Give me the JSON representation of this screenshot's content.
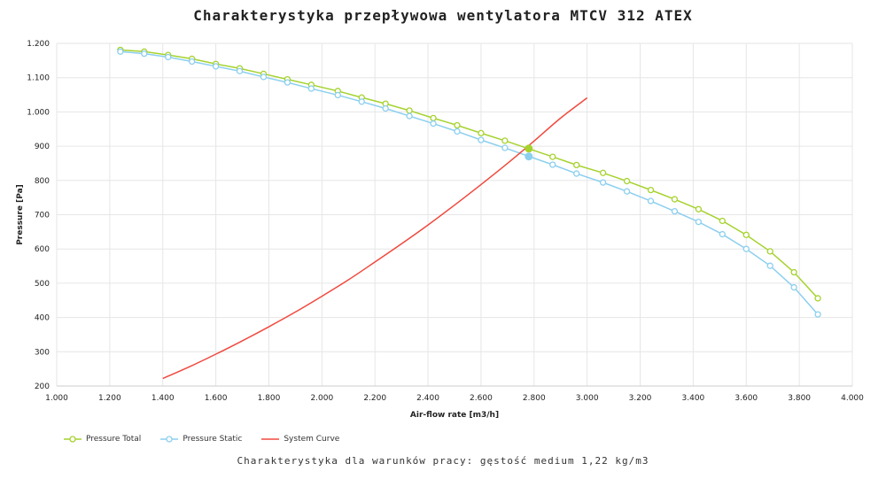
{
  "chart_data": {
    "type": "line",
    "title": "Charakterystyka przepływowa wentylatora MTCV 312 ATEX",
    "subtitle": "Charakterystyka dla warunków pracy: gęstość medium 1,22 kg/m3",
    "xlabel": "Air-flow rate [m3/h]",
    "ylabel": "Pressure [Pa]",
    "xlim": [
      1000,
      4000
    ],
    "ylim": [
      200,
      1200
    ],
    "x_ticks": [
      "1.000",
      "1.200",
      "1.400",
      "1.600",
      "1.800",
      "2.000",
      "2.200",
      "2.400",
      "2.600",
      "2.800",
      "3.000",
      "3.200",
      "3.400",
      "3.600",
      "3.800",
      "4.000"
    ],
    "y_ticks": [
      "200",
      "300",
      "400",
      "500",
      "600",
      "700",
      "800",
      "900",
      "1.000",
      "1.100",
      "1.200"
    ],
    "grid": true,
    "legend_position": "bottom-left",
    "series": [
      {
        "name": "Pressure Total",
        "color": "#a6d22e",
        "marker": "circle",
        "x": [
          1240,
          1330,
          1420,
          1510,
          1600,
          1690,
          1780,
          1870,
          1960,
          2060,
          2150,
          2240,
          2330,
          2420,
          2510,
          2600,
          2690,
          2870,
          2960,
          3060,
          3150,
          3240,
          3330,
          3420,
          3510,
          3600,
          3690,
          3780,
          3870
        ],
        "y": [
          1181,
          1176,
          1166,
          1155,
          1140,
          1127,
          1111,
          1095,
          1079,
          1061,
          1042,
          1024,
          1004,
          982,
          961,
          938,
          916,
          869,
          845,
          822,
          798,
          772,
          745,
          716,
          682,
          641,
          593,
          532,
          456
        ]
      },
      {
        "name": "Pressure Static",
        "color": "#8ccfef",
        "marker": "circle",
        "x": [
          1240,
          1330,
          1420,
          1510,
          1600,
          1690,
          1780,
          1870,
          1960,
          2060,
          2150,
          2240,
          2330,
          2420,
          2510,
          2600,
          2690,
          2870,
          2960,
          3060,
          3150,
          3240,
          3330,
          3420,
          3510,
          3600,
          3690,
          3780,
          3870
        ],
        "y": [
          1176,
          1170,
          1160,
          1147,
          1133,
          1119,
          1102,
          1086,
          1068,
          1049,
          1030,
          1010,
          988,
          966,
          943,
          918,
          895,
          846,
          820,
          794,
          768,
          740,
          710,
          679,
          643,
          600,
          551,
          488,
          409
        ]
      },
      {
        "name": "System Curve",
        "color": "#f0493e",
        "marker": "none",
        "x": [
          1400,
          1500,
          1600,
          1700,
          1800,
          1900,
          2000,
          2100,
          2200,
          2300,
          2400,
          2500,
          2600,
          2700,
          2800,
          2900,
          3000
        ],
        "y": [
          222,
          256,
          293,
          332,
          373,
          416,
          462,
          510,
          562,
          615,
          670,
          728,
          788,
          850,
          915,
          982,
          1041
        ]
      }
    ],
    "operating_point": {
      "x": 2780,
      "total": 893,
      "static": 870
    }
  }
}
